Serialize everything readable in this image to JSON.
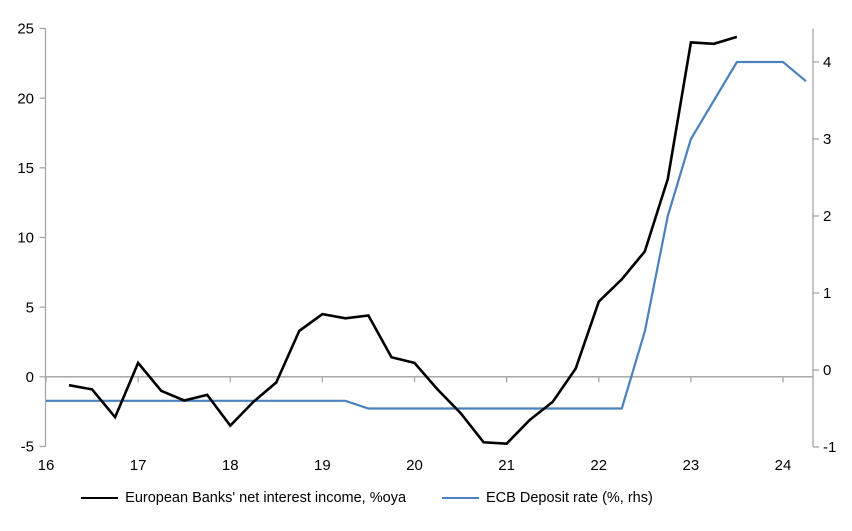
{
  "chart_data": {
    "type": "line",
    "title": "",
    "grid": "zero-line-only",
    "legend_position": "bottom",
    "x_axis": {
      "tick_labels": [
        "16",
        "17",
        "18",
        "19",
        "20",
        "21",
        "22",
        "23",
        "24"
      ],
      "tick_years": [
        16,
        17,
        18,
        19,
        20,
        21,
        22,
        23,
        24
      ],
      "range": [
        16,
        24.33
      ]
    },
    "left_axis": {
      "ticks": [
        -5,
        0,
        5,
        10,
        15,
        20,
        25
      ],
      "tick_labels": [
        "-5",
        "0",
        "5",
        "10",
        "15",
        "20",
        "25"
      ],
      "range": [
        -5,
        25
      ]
    },
    "right_axis": {
      "ticks": [
        -1,
        0,
        1,
        2,
        3,
        4
      ],
      "tick_labels": [
        "-1",
        "0",
        "1",
        "2",
        "3",
        "4"
      ],
      "range": [
        -1,
        4.45
      ]
    },
    "series": [
      {
        "name": "European Banks' net interest income, %oya",
        "color": "#000000",
        "axis": "left",
        "x": [
          16.25,
          16.5,
          16.75,
          17.0,
          17.25,
          17.5,
          17.75,
          18.0,
          18.25,
          18.5,
          18.75,
          19.0,
          19.25,
          19.5,
          19.75,
          20.0,
          20.25,
          20.5,
          20.75,
          21.0,
          21.25,
          21.5,
          21.75,
          22.0,
          22.25,
          22.5,
          22.75,
          23.0,
          23.25,
          23.5
        ],
        "values": [
          -0.6,
          -0.9,
          -2.9,
          1.0,
          -1.0,
          -1.7,
          -1.3,
          -3.5,
          -1.8,
          -0.4,
          3.3,
          4.5,
          4.2,
          4.4,
          1.4,
          1.0,
          -0.9,
          -2.6,
          -4.7,
          -4.8,
          -3.1,
          -1.8,
          0.6,
          5.4,
          7.0,
          9.0,
          14.2,
          24.0,
          23.9,
          24.4
        ]
      },
      {
        "name": "ECB Deposit rate (%, rhs)",
        "color": "#4a82be",
        "axis": "right",
        "x": [
          16.0,
          16.25,
          16.5,
          16.75,
          17.0,
          17.25,
          17.5,
          17.75,
          18.0,
          18.25,
          18.5,
          18.75,
          19.0,
          19.25,
          19.5,
          19.75,
          20.0,
          20.25,
          20.5,
          20.75,
          21.0,
          21.25,
          21.5,
          21.75,
          22.0,
          22.25,
          22.5,
          22.75,
          23.0,
          23.25,
          23.5,
          23.75,
          24.0,
          24.25
        ],
        "values": [
          -0.4,
          -0.4,
          -0.4,
          -0.4,
          -0.4,
          -0.4,
          -0.4,
          -0.4,
          -0.4,
          -0.4,
          -0.4,
          -0.4,
          -0.4,
          -0.4,
          -0.5,
          -0.5,
          -0.5,
          -0.5,
          -0.5,
          -0.5,
          -0.5,
          -0.5,
          -0.5,
          -0.5,
          -0.5,
          -0.5,
          0.5,
          2.0,
          3.0,
          3.5,
          4.0,
          4.0,
          4.0,
          3.75
        ]
      }
    ]
  }
}
